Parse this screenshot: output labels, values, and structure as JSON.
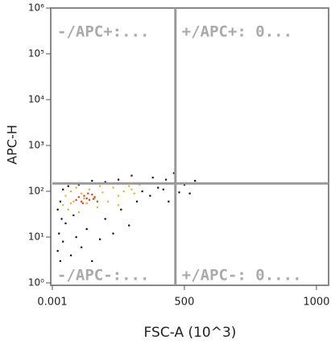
{
  "chart_data": {
    "type": "scatter",
    "xlabel": "FSC-A (10^3)",
    "ylabel": "APC-H",
    "xlim": [
      0,
      1046
    ],
    "xticks": [
      {
        "value": 0.001,
        "label": "0.001"
      },
      500,
      1000
    ],
    "ylim": [
      1,
      1000000
    ],
    "log_y": true,
    "yticks": [
      {
        "value": 1,
        "label": "10⁰"
      },
      {
        "value": 10,
        "label": "10¹"
      },
      {
        "value": 100,
        "label": "10²"
      },
      {
        "value": 1000,
        "label": "10³"
      },
      {
        "value": 10000,
        "label": "10⁴"
      },
      {
        "value": 100000,
        "label": "10⁵"
      },
      {
        "value": 1000000,
        "label": "10⁶"
      }
    ],
    "gate": {
      "x": 466,
      "y": 148,
      "color": "#999999"
    },
    "quadrant_labels": [
      "-/APC+:...",
      "+/APC+: 0...",
      "-/APC-:...",
      "+/APC-: 0...."
    ],
    "series": [
      {
        "color": "#111111",
        "x": [
          20,
          25,
          30,
          40,
          50,
          70,
          90,
          110,
          130,
          150,
          180,
          200,
          230,
          260,
          290,
          320,
          350,
          380,
          400,
          430,
          460,
          500,
          520,
          540,
          300,
          250,
          200,
          150,
          100,
          60,
          40,
          30,
          20,
          35,
          80,
          340,
          370,
          420,
          480,
          440
        ],
        "y": [
          5,
          12,
          3,
          8,
          20,
          4,
          10,
          6,
          15,
          3,
          9,
          25,
          12,
          40,
          18,
          60,
          150,
          200,
          120,
          180,
          250,
          140,
          90,
          170,
          220,
          180,
          160,
          170,
          140,
          130,
          110,
          60,
          40,
          25,
          30,
          100,
          80,
          110,
          95,
          60
        ]
      },
      {
        "color": "#f0b020",
        "x": [
          40,
          50,
          60,
          70,
          80,
          90,
          100,
          110,
          130,
          140,
          160,
          170,
          190,
          210,
          230,
          250,
          270,
          290,
          310,
          330,
          250,
          180,
          120,
          70,
          300
        ],
        "y": [
          50,
          80,
          40,
          100,
          60,
          120,
          35,
          90,
          55,
          110,
          70,
          45,
          95,
          60,
          120,
          80,
          100,
          130,
          90,
          140,
          50,
          130,
          70,
          55,
          110
        ]
      },
      {
        "color": "#e04020",
        "x": [
          90,
          100,
          110,
          120,
          130,
          140,
          150,
          160,
          170,
          115,
          135,
          155
        ],
        "y": [
          65,
          75,
          60,
          80,
          70,
          65,
          85,
          75,
          60,
          55,
          90,
          68
        ]
      }
    ]
  }
}
